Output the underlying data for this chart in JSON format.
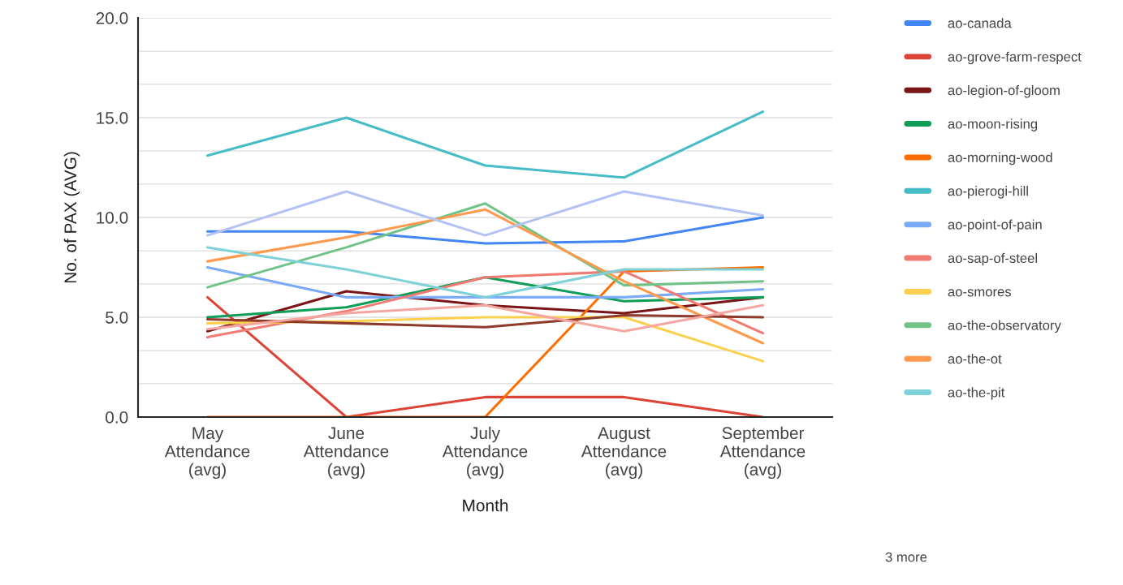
{
  "chart_data": {
    "type": "line",
    "xlabel": "Month",
    "ylabel": "No. of PAX (AVG)",
    "categories": [
      "May Attendance (avg)",
      "June Attendance (avg)",
      "July Attendance (avg)",
      "August Attendance (avg)",
      "September Attendance (avg)"
    ],
    "ylim": [
      0,
      20
    ],
    "yticks": [
      {
        "value": 0,
        "label": "0.0"
      },
      {
        "value": 1.67,
        "label": null
      },
      {
        "value": 3.33,
        "label": null
      },
      {
        "value": 5,
        "label": "5.0"
      },
      {
        "value": 6.67,
        "label": null
      },
      {
        "value": 8.33,
        "label": null
      },
      {
        "value": 10,
        "label": "10.0"
      },
      {
        "value": 11.67,
        "label": null
      },
      {
        "value": 13.33,
        "label": null
      },
      {
        "value": 15,
        "label": "15.0"
      },
      {
        "value": 16.67,
        "label": null
      },
      {
        "value": 18.33,
        "label": null
      },
      {
        "value": 20,
        "label": "20.0"
      }
    ],
    "grid": "y",
    "legend": "right",
    "marker": "none",
    "line_style": "solid",
    "series": [
      {
        "name": "ao-canada",
        "color": "#4285f4",
        "values": [
          9.3,
          9.3,
          8.7,
          8.8,
          10.0
        ]
      },
      {
        "name": "ao-grove-farm-respect",
        "color": "#db4437",
        "values": [
          6.0,
          0.0,
          1.0,
          1.0,
          0.0
        ]
      },
      {
        "name": "ao-legion-of-gloom",
        "color": "#7b1416",
        "values": [
          4.3,
          6.3,
          5.6,
          5.2,
          6.0
        ]
      },
      {
        "name": "ao-moon-rising",
        "color": "#0f9d58",
        "values": [
          5.0,
          5.5,
          7.0,
          5.8,
          6.0
        ]
      },
      {
        "name": "ao-morning-wood",
        "color": "#ff6d00",
        "values": [
          0.0,
          0.0,
          0.0,
          7.3,
          7.5
        ]
      },
      {
        "name": "ao-pierogi-hill",
        "color": "#46bdc6",
        "values": [
          13.1,
          15.0,
          12.6,
          12.0,
          15.3
        ]
      },
      {
        "name": "ao-point-of-pain",
        "color": "#7baaf7",
        "values": [
          7.5,
          6.0,
          6.0,
          6.0,
          6.4
        ]
      },
      {
        "name": "ao-sap-of-steel",
        "color": "#f07b72",
        "values": [
          4.0,
          5.3,
          7.0,
          7.3,
          4.2
        ]
      },
      {
        "name": "ao-smores",
        "color": "#fcd04f",
        "values": [
          4.7,
          4.8,
          5.0,
          5.0,
          2.8
        ]
      },
      {
        "name": "ao-the-observatory",
        "color": "#71c287",
        "values": [
          6.5,
          8.5,
          10.7,
          6.6,
          6.8
        ]
      },
      {
        "name": "ao-the-ot",
        "color": "#ff994d",
        "values": [
          7.8,
          9.0,
          10.4,
          6.8,
          3.7
        ]
      },
      {
        "name": "ao-the-pit",
        "color": "#7ed1d7",
        "values": [
          8.5,
          7.4,
          6.0,
          7.4,
          7.4
        ]
      },
      {
        "color": "#b3c2f2",
        "values": [
          9.1,
          11.3,
          9.1,
          11.3,
          10.1
        ]
      },
      {
        "color": "#8f3a2a",
        "values": [
          4.9,
          4.7,
          4.5,
          5.1,
          5.0
        ]
      },
      {
        "color": "#f4a7a0",
        "values": [
          4.4,
          5.2,
          5.6,
          4.3,
          5.6
        ]
      }
    ],
    "annotations": [
      "3 more"
    ]
  }
}
